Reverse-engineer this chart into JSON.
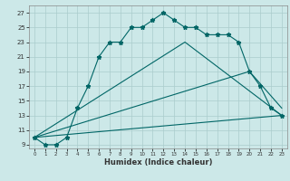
{
  "xlabel": "Humidex (Indice chaleur)",
  "bg_color": "#cce8e8",
  "grid_color": "#aacccc",
  "line_color": "#006666",
  "xlim": [
    -0.5,
    23.5
  ],
  "ylim": [
    8.5,
    28
  ],
  "xticks": [
    0,
    1,
    2,
    3,
    4,
    5,
    6,
    7,
    8,
    9,
    10,
    11,
    12,
    13,
    14,
    15,
    16,
    17,
    18,
    19,
    20,
    21,
    22,
    23
  ],
  "yticks": [
    9,
    11,
    13,
    15,
    17,
    19,
    21,
    23,
    25,
    27
  ],
  "series": [
    {
      "x": [
        0,
        1,
        2,
        3,
        4,
        5,
        6,
        7,
        8,
        9,
        10,
        11,
        12,
        13,
        14,
        15,
        16,
        17,
        18,
        19,
        20,
        21,
        22,
        23
      ],
      "y": [
        10,
        9,
        9,
        10,
        14,
        17,
        21,
        23,
        23,
        25,
        25,
        26,
        27,
        26,
        25,
        25,
        24,
        24,
        24,
        23,
        19,
        17,
        14,
        13
      ],
      "marker": "*",
      "markersize": 3.5,
      "linestyle": "-"
    },
    {
      "x": [
        0,
        23
      ],
      "y": [
        10,
        13
      ],
      "marker": null,
      "markersize": 0,
      "linestyle": "-"
    },
    {
      "x": [
        0,
        20,
        23
      ],
      "y": [
        10,
        19,
        14
      ],
      "marker": null,
      "markersize": 0,
      "linestyle": "-"
    },
    {
      "x": [
        0,
        14,
        23
      ],
      "y": [
        10,
        23,
        13
      ],
      "marker": null,
      "markersize": 0,
      "linestyle": "-"
    }
  ]
}
